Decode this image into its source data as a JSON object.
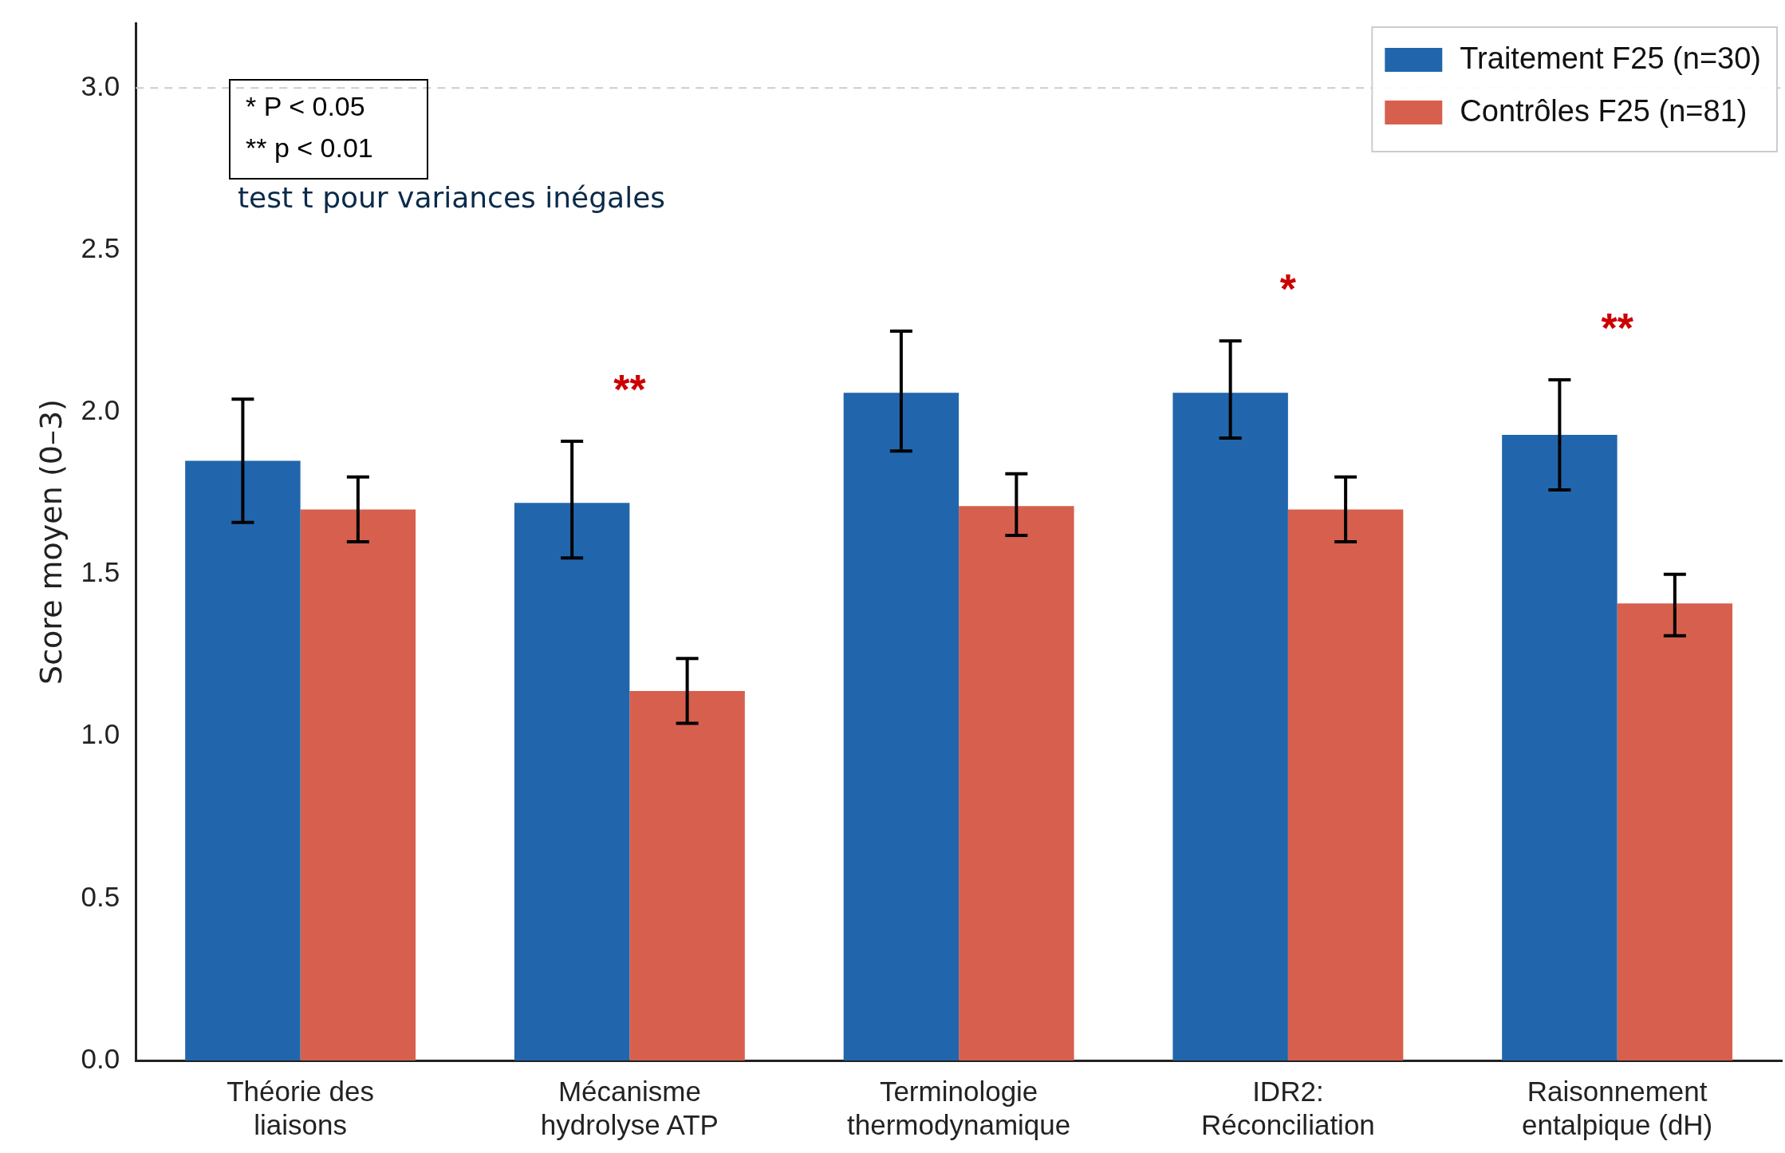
{
  "chart_data": {
    "type": "bar",
    "ylabel": "Score moyen (0–3)",
    "categories": [
      "Théorie des\nliaisons",
      "Mécanisme\nhydrolyse ATP",
      "Terminologie\nthermodynamique",
      "IDR2:\nRéconciliation",
      "Raisonnement\nentalpique (dH)"
    ],
    "series": [
      {
        "name": "Traitement F25 (n=30)",
        "color": "#2166ac",
        "values": [
          1.85,
          1.72,
          2.06,
          2.06,
          1.93
        ],
        "errors": [
          [
            1.66,
            2.04
          ],
          [
            1.55,
            1.91
          ],
          [
            1.88,
            2.25
          ],
          [
            1.92,
            2.22
          ],
          [
            1.76,
            2.1
          ]
        ]
      },
      {
        "name": "Contrôles F25 (n=81)",
        "color": "#d6604d",
        "values": [
          1.7,
          1.14,
          1.71,
          1.7,
          1.41
        ],
        "errors": [
          [
            1.6,
            1.8
          ],
          [
            1.04,
            1.24
          ],
          [
            1.62,
            1.81
          ],
          [
            1.6,
            1.8
          ],
          [
            1.31,
            1.5
          ]
        ]
      }
    ],
    "ylim": [
      0,
      3.2
    ],
    "yticks": [
      {
        "value": 0,
        "label": "0.0"
      },
      0.5,
      {
        "value": 1,
        "label": "1.0"
      },
      1.5,
      {
        "value": 2,
        "label": "2.0"
      },
      2.5,
      {
        "value": 3,
        "label": "3.0"
      }
    ],
    "grid": false,
    "legend": "top right",
    "ref_lines": [
      {
        "axis": "y",
        "value": 3,
        "color": "#cccccc",
        "line_style": "dashed"
      }
    ],
    "annotations": [
      "* P < 0.05\n** p < 0.01",
      "test t pour variances inégales",
      "**",
      "*",
      "**"
    ]
  }
}
